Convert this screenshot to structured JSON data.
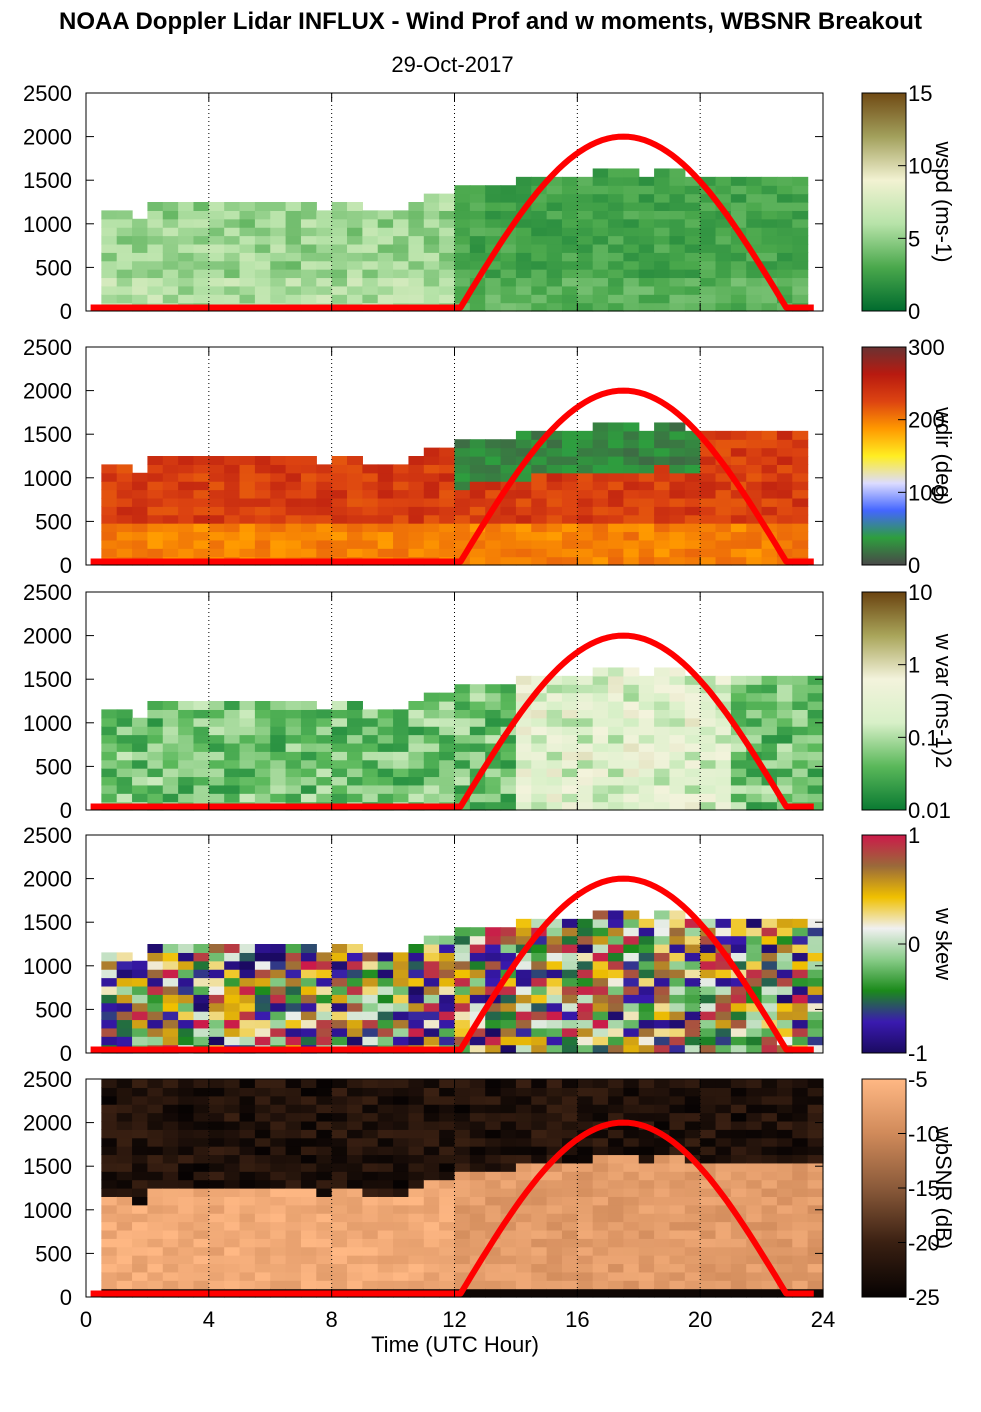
{
  "title": "NOAA Doppler Lidar INFLUX - Wind Prof and w moments, WBSNR Breakout",
  "subtitle": "29-Oct-2017",
  "xaxis": {
    "label": "Time (UTC Hour)",
    "ticks": [
      "0",
      "4",
      "8",
      "12",
      "16",
      "20",
      "24"
    ]
  },
  "yaxis": {
    "ticks": [
      "0",
      "500",
      "1000",
      "1500",
      "2000",
      "2500"
    ]
  },
  "chart_data": [
    {
      "type": "heatmap",
      "variable": "wspd",
      "colorbar_label": "wspd (ms-1)",
      "colorbar_ticks": [
        "0",
        "5",
        "10",
        "15"
      ],
      "xlim": [
        0,
        24
      ],
      "ylim": [
        0,
        2500
      ],
      "top_height_m": [
        1130,
        1150,
        1100,
        1040,
        1180,
        1170,
        1200,
        1200,
        1180,
        1200,
        1210,
        1180,
        1160,
        1170,
        1180,
        1150,
        1160,
        1160,
        1120,
        1150,
        1140,
        1200,
        1280,
        1320,
        1360,
        1400,
        1420,
        1440,
        1460,
        1480,
        1500,
        1500,
        1520,
        1540,
        1550,
        1540,
        1530,
        1560,
        1550,
        1520,
        1500,
        1500,
        1490,
        1480,
        1460,
        1450,
        1450,
        1450
      ],
      "sun_curve": {
        "rise_hour": 12.2,
        "set_hour": 22.8,
        "peak_hour": 17.5,
        "peak_m": 2000
      }
    },
    {
      "type": "heatmap",
      "variable": "wdir",
      "colorbar_label": "wdir (deg)",
      "colorbar_ticks": [
        "0",
        "100",
        "200",
        "300"
      ],
      "xlim": [
        0,
        24
      ],
      "ylim": [
        0,
        2500
      ],
      "top_height_m": [
        1130,
        1150,
        1100,
        1040,
        1180,
        1170,
        1200,
        1200,
        1180,
        1200,
        1210,
        1180,
        1160,
        1170,
        1180,
        1150,
        1160,
        1160,
        1120,
        1150,
        1140,
        1200,
        1280,
        1320,
        1360,
        1400,
        1420,
        1440,
        1460,
        1480,
        1500,
        1500,
        1520,
        1540,
        1550,
        1540,
        1530,
        1560,
        1550,
        1520,
        1500,
        1500,
        1490,
        1480,
        1460,
        1450,
        1450,
        1450
      ]
    },
    {
      "type": "heatmap",
      "variable": "w var",
      "colorbar_label": "w var (ms-1)2",
      "colorbar_ticks": [
        "0.01",
        "0.1",
        "1",
        "10"
      ],
      "xlim": [
        0,
        24
      ],
      "ylim": [
        0,
        2500
      ],
      "top_height_m": [
        1130,
        1150,
        1100,
        1040,
        1180,
        1170,
        1200,
        1200,
        1180,
        1200,
        1210,
        1180,
        1160,
        1170,
        1180,
        1150,
        1160,
        1160,
        1120,
        1150,
        1140,
        1200,
        1280,
        1320,
        1360,
        1400,
        1420,
        1440,
        1460,
        1480,
        1500,
        1500,
        1520,
        1540,
        1550,
        1540,
        1530,
        1560,
        1550,
        1520,
        1500,
        1500,
        1490,
        1480,
        1460,
        1450,
        1450,
        1450
      ]
    },
    {
      "type": "heatmap",
      "variable": "w skew",
      "colorbar_label": "w skew",
      "colorbar_ticks": [
        "-1",
        "0",
        "1"
      ],
      "xlim": [
        0,
        24
      ],
      "ylim": [
        0,
        2500
      ],
      "top_height_m": [
        1130,
        1150,
        1100,
        1040,
        1180,
        1170,
        1200,
        1200,
        1180,
        1200,
        1210,
        1180,
        1160,
        1170,
        1180,
        1150,
        1160,
        1160,
        1120,
        1150,
        1140,
        1200,
        1280,
        1320,
        1360,
        1400,
        1420,
        1440,
        1460,
        1480,
        1500,
        1500,
        1520,
        1540,
        1550,
        1540,
        1530,
        1560,
        1550,
        1520,
        1500,
        1500,
        1490,
        1480,
        1460,
        1450,
        1450,
        1450
      ]
    },
    {
      "type": "heatmap",
      "variable": "wbSNR",
      "colorbar_label": "wbSNR (dB)",
      "colorbar_ticks": [
        "-25",
        "-20",
        "-15",
        "-10",
        "-5"
      ],
      "xlim": [
        0,
        24
      ],
      "ylim": [
        0,
        2500
      ],
      "top_height_m": [
        1130,
        1150,
        1100,
        1040,
        1180,
        1170,
        1200,
        1200,
        1180,
        1200,
        1210,
        1180,
        1160,
        1170,
        1180,
        1150,
        1160,
        1160,
        1120,
        1150,
        1140,
        1200,
        1280,
        1320,
        1360,
        1400,
        1420,
        1440,
        1460,
        1480,
        1500,
        1500,
        1520,
        1540,
        1550,
        1540,
        1530,
        1560,
        1550,
        1520,
        1500,
        1500,
        1490,
        1480,
        1460,
        1450,
        1450,
        1450
      ]
    }
  ],
  "colors": {
    "sun_curve": "#ff0000",
    "wspd": [
      "#006b2e",
      "#4aa84c",
      "#b7e3a9",
      "#f2f2d2",
      "#a2a05c",
      "#704a14"
    ],
    "wdir": [
      "#484848",
      "#2e9e3e",
      "#4466ff",
      "#dcdcff",
      "#ffee22",
      "#ff9900",
      "#dd4411",
      "#b81a10",
      "#6a3232"
    ],
    "wvar": [
      "#0a7a32",
      "#5ab85a",
      "#d8f0c8",
      "#f3f3dc",
      "#a9a55a",
      "#6a4310"
    ],
    "wskew": [
      "#1a0a60",
      "#3a1ab0",
      "#1b8a1b",
      "#88cc88",
      "#f0f0f0",
      "#f0c000",
      "#9a6a3a",
      "#cc1a4a"
    ],
    "wbsnr": [
      "#060202",
      "#3a2012",
      "#8a5a3a",
      "#d08a5a",
      "#ffb884"
    ]
  }
}
